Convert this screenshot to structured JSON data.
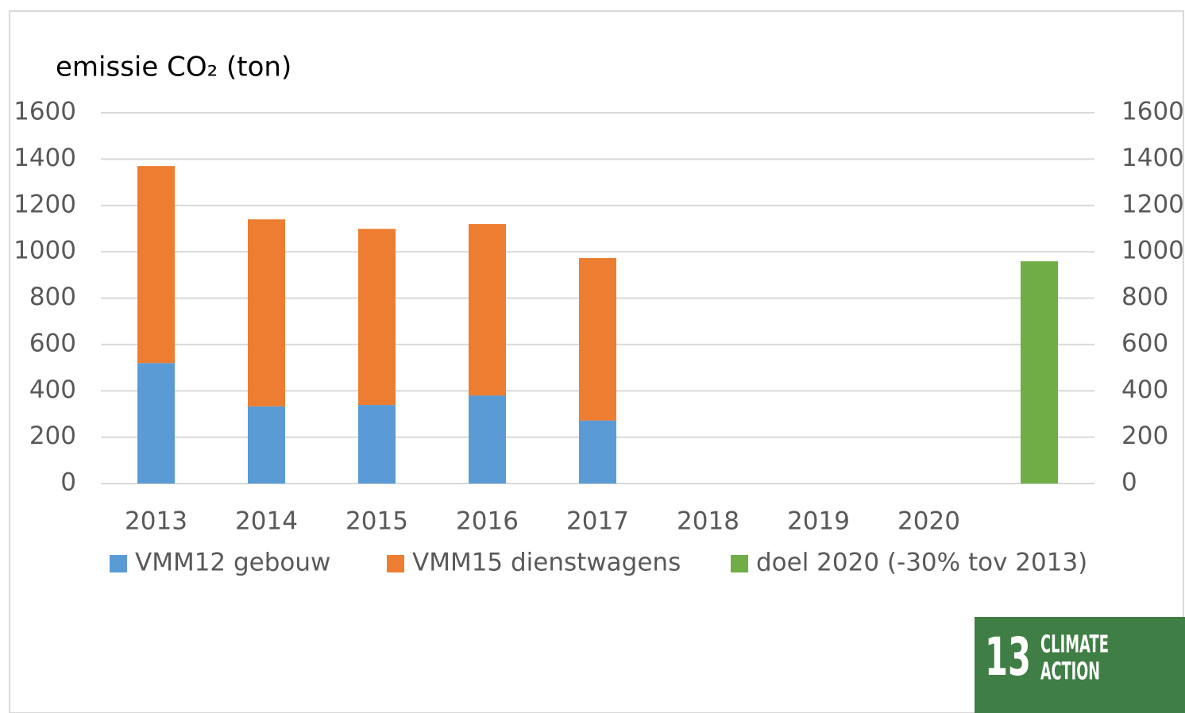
{
  "chart_data": {
    "type": "stacked_bar",
    "title": "emissie CO₂ (ton)",
    "categories": [
      "2013",
      "2014",
      "2015",
      "2016",
      "2017",
      "2018",
      "2019",
      "2020",
      null
    ],
    "series": [
      {
        "name": "VMM12 gebouw",
        "color": "#5b9bd5",
        "values": [
          520,
          333,
          339,
          380,
          272,
          null,
          null,
          null,
          null
        ]
      },
      {
        "name": "VMM15 dienstwagens",
        "color": "#ed7d31",
        "values": [
          850,
          807,
          760,
          740,
          701,
          null,
          null,
          null,
          null
        ]
      },
      {
        "name": "doel 2020 (-30% tov 2013)",
        "color": "#70ad47",
        "values": [
          null,
          null,
          null,
          null,
          null,
          null,
          null,
          null,
          959
        ]
      }
    ],
    "ylim": [
      0,
      1600
    ],
    "yticks": [
      0,
      200,
      400,
      600,
      800,
      1000,
      1200,
      1400,
      1600
    ],
    "y2lim": [
      0,
      1600
    ],
    "y2ticks": [
      0,
      200,
      400,
      600,
      800,
      1000,
      1200,
      1400,
      1600
    ],
    "grid": true,
    "legend": "bottom"
  },
  "logo": {
    "number": "13",
    "lines": [
      "CLIMATE",
      "ACTION"
    ]
  }
}
